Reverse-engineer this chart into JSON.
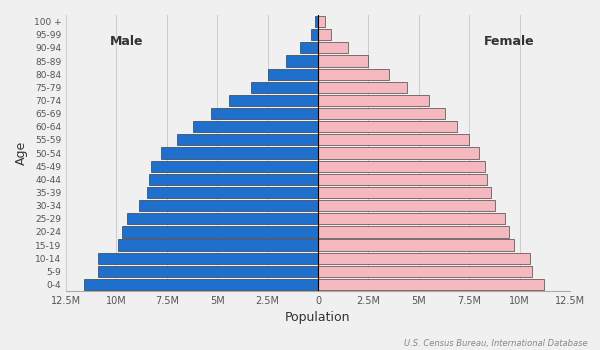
{
  "age_groups": [
    "0-4",
    "5-9",
    "10-14",
    "15-19",
    "20-24",
    "25-29",
    "30-34",
    "35-39",
    "40-44",
    "45-49",
    "50-54",
    "55-59",
    "60-64",
    "65-69",
    "70-74",
    "75-79",
    "80-84",
    "85-89",
    "90-94",
    "95-99",
    "100 +"
  ],
  "male": [
    11.6,
    10.9,
    10.9,
    9.9,
    9.7,
    9.5,
    8.9,
    8.5,
    8.4,
    8.3,
    7.8,
    7.0,
    6.2,
    5.3,
    4.4,
    3.3,
    2.5,
    1.6,
    0.9,
    0.35,
    0.15
  ],
  "female": [
    11.2,
    10.6,
    10.5,
    9.7,
    9.5,
    9.3,
    8.8,
    8.6,
    8.4,
    8.3,
    8.0,
    7.5,
    6.9,
    6.3,
    5.5,
    4.4,
    3.5,
    2.5,
    1.5,
    0.65,
    0.35
  ],
  "male_color": "#1f6fcc",
  "female_color": "#f4b8be",
  "edge_color": "#222222",
  "background_color": "#f0f0f0",
  "xlabel": "Population",
  "ylabel": "Age",
  "male_label": "Male",
  "female_label": "Female",
  "source_text": "U.S. Census Bureau, International Database",
  "xlim": 12.5,
  "xtick_labels": [
    "12.5M",
    "10M",
    "7.5M",
    "5M",
    "2.5M",
    "0",
    "2.5M",
    "5M",
    "7.5M",
    "10M",
    "12.5M"
  ],
  "xtick_vals": [
    -12.5,
    -10,
    -7.5,
    -5,
    -2.5,
    0,
    2.5,
    5,
    7.5,
    10,
    12.5
  ],
  "bar_height": 0.85
}
